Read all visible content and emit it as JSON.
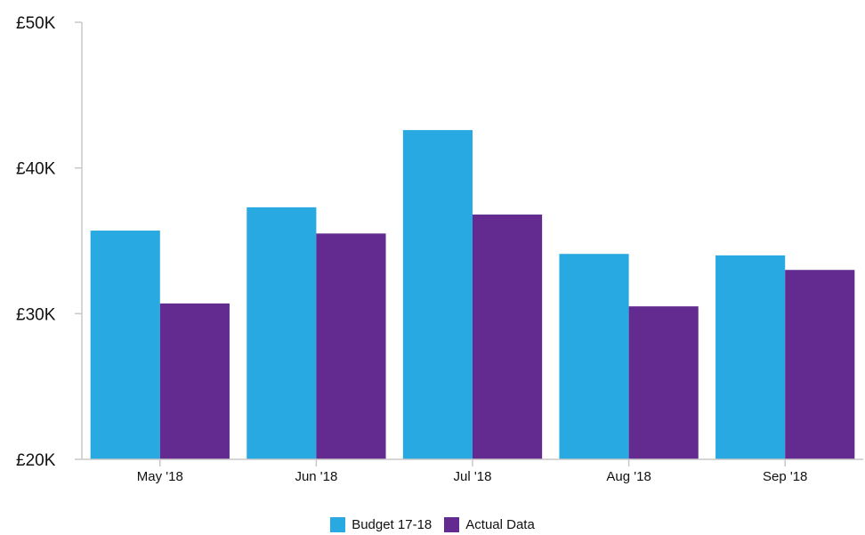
{
  "chart_data": {
    "type": "bar",
    "categories": [
      "May '18",
      "Jun '18",
      "Jul '18",
      "Aug '18",
      "Sep '18"
    ],
    "series": [
      {
        "name": "Budget 17-18",
        "color": "#29a9e1",
        "values": [
          35700,
          37300,
          42600,
          34100,
          34000
        ]
      },
      {
        "name": "Actual Data",
        "color": "#632b8f",
        "values": [
          30700,
          35500,
          36800,
          30500,
          33000
        ]
      }
    ],
    "yticks": [
      {
        "value": 20000,
        "label": "£20K"
      },
      {
        "value": 30000,
        "label": "£30K"
      },
      {
        "value": 40000,
        "label": "£40K"
      },
      {
        "value": 50000,
        "label": "£50K"
      }
    ],
    "ylim": [
      20000,
      50000
    ],
    "title": "",
    "xlabel": "",
    "ylabel": "",
    "grid": false,
    "legend_position": "bottom-center",
    "axis_color": "#c8c8c8"
  }
}
